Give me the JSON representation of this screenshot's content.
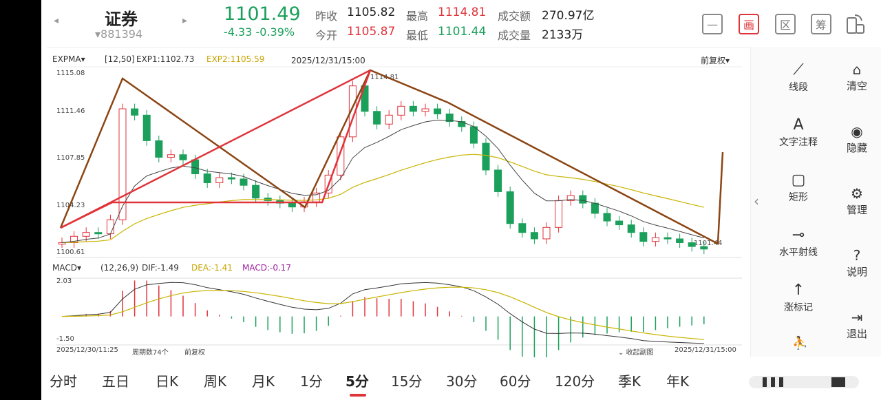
{
  "header": {
    "stock_name": "证券",
    "stock_code": "▾881394",
    "last_price": "1101.49",
    "change": "-4.33  -0.39%",
    "stats": [
      {
        "label": "昨收",
        "value": "1105.82",
        "color": "#222222"
      },
      {
        "label": "最高",
        "value": "1114.81",
        "color": "#e0333a"
      },
      {
        "label": "成交额",
        "value": "270.97亿",
        "color": "#222222"
      },
      {
        "label": "今开",
        "value": "1105.87",
        "color": "#e0333a"
      },
      {
        "label": "最低",
        "value": "1101.44",
        "color": "#1aa05a"
      },
      {
        "label": "成交量",
        "value": "2133万",
        "color": "#222222"
      }
    ],
    "toolbar": {
      "minus": "—",
      "chart_mode": "画",
      "zone": "区",
      "chips": "筹"
    }
  },
  "chart": {
    "indicator": "EXPMA",
    "params": "[12,50]",
    "exp1": "EXP1:1102.73",
    "exp2": "EXP2:1105.59",
    "timestamp": "2025/12/31/15:00",
    "adjust": "前复权",
    "y_top": "1115.08",
    "y_mid1": "1111.46",
    "y_mid2": "1107.85",
    "y_low": "1104.23",
    "y_bottom": "1100.61",
    "high_marker": "1114.81",
    "low_marker": "1101.44",
    "macd_label": "MACD",
    "macd_params": "(12,26,9)",
    "dif": "DIF:-1.49",
    "dea": "DEA:-1.41",
    "macd_val": "MACD:-0.17",
    "macd_top": "2.03",
    "macd_bottom": "-1.50",
    "start_time": "2025/12/30/11:25",
    "period_count": "周期数74个",
    "adjust2": "前复权",
    "collapse": "收起副图",
    "end_time": "2025/12/31/15:00"
  },
  "chart_data": {
    "type": "candlestick",
    "ylim": [
      1100.61,
      1115.08
    ],
    "close_trend": [
      1101.5,
      1102.0,
      1102.3,
      1102.2,
      1103.3,
      1112.0,
      1111.5,
      1109.5,
      1108.2,
      1108.4,
      1108.0,
      1106.9,
      1106.2,
      1106.6,
      1106.5,
      1106.0,
      1105.0,
      1104.8,
      1104.6,
      1104.3,
      1104.7,
      1105.4,
      1106.8,
      1109.8,
      1113.8,
      1111.8,
      1110.8,
      1111.5,
      1112.2,
      1111.8,
      1112.0,
      1111.6,
      1111.0,
      1110.6,
      1109.3,
      1107.2,
      1105.5,
      1103.0,
      1102.3,
      1101.8,
      1102.7,
      1104.8,
      1105.2,
      1104.6,
      1103.8,
      1103.2,
      1102.9,
      1102.3,
      1101.6,
      1101.9,
      1101.8,
      1101.5,
      1101.2,
      1101.0
    ]
  },
  "right_panel": {
    "tools": [
      "线段",
      "文字注释",
      "矩形",
      "水平射线",
      "涨标记"
    ],
    "side": [
      "清空",
      "隐藏",
      "管理",
      "说明",
      "退出"
    ]
  },
  "periods": [
    "分时",
    "五日",
    "日K",
    "周K",
    "月K",
    "1分",
    "5分",
    "15分",
    "30分",
    "60分",
    "120分",
    "季K",
    "年K"
  ]
}
